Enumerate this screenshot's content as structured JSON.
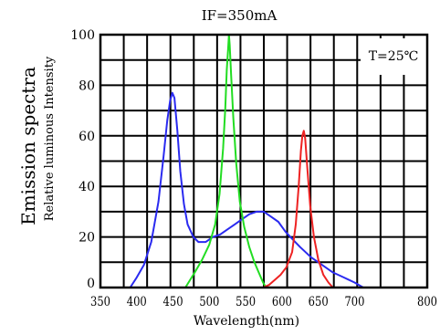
{
  "chart_data": {
    "type": "line",
    "title": "IF=350mA",
    "ylabel_primary": "Emission spectra",
    "ylabel_secondary": "Relative luminous Intensity",
    "xlabel": "Wavelength(nm)",
    "annotation": "T=25℃",
    "xlim": [
      350,
      800
    ],
    "ylim": [
      0,
      100
    ],
    "x_ticks": [
      {
        "value": 350,
        "label": "350"
      },
      {
        "value": 400,
        "label": "400"
      },
      {
        "value": 450,
        "label": "450"
      },
      {
        "value": 500,
        "label": "500"
      },
      {
        "value": 550,
        "label": "550"
      },
      {
        "value": 600,
        "label": "600"
      },
      {
        "value": 650,
        "label": "650"
      },
      {
        "value": 700,
        "label": "700"
      },
      {
        "value": 800,
        "label": "800"
      }
    ],
    "y_ticks": [
      {
        "value": 0,
        "label": "0"
      },
      {
        "value": 20,
        "label": "20"
      },
      {
        "value": 40,
        "label": "40"
      },
      {
        "value": 60,
        "label": "60"
      },
      {
        "value": 80,
        "label": "80"
      },
      {
        "value": 100,
        "label": "100"
      }
    ],
    "grid": true,
    "series": [
      {
        "color": "#2a2af0",
        "points": [
          [
            391,
            0
          ],
          [
            400,
            4
          ],
          [
            410,
            9
          ],
          [
            420,
            18
          ],
          [
            430,
            34
          ],
          [
            437,
            52
          ],
          [
            442,
            66
          ],
          [
            446,
            74
          ],
          [
            449,
            77
          ],
          [
            452,
            75
          ],
          [
            456,
            62
          ],
          [
            460,
            46
          ],
          [
            465,
            33
          ],
          [
            470,
            25
          ],
          [
            478,
            20
          ],
          [
            485,
            18
          ],
          [
            495,
            18
          ],
          [
            505,
            20
          ],
          [
            515,
            21
          ],
          [
            525,
            23
          ],
          [
            535,
            25
          ],
          [
            545,
            27
          ],
          [
            555,
            29
          ],
          [
            565,
            30
          ],
          [
            575,
            30
          ],
          [
            585,
            28
          ],
          [
            595,
            26
          ],
          [
            605,
            22
          ],
          [
            615,
            19
          ],
          [
            625,
            16
          ],
          [
            640,
            12
          ],
          [
            655,
            9
          ],
          [
            670,
            6
          ],
          [
            685,
            4
          ],
          [
            700,
            2
          ],
          [
            712,
            0
          ]
        ]
      },
      {
        "color": "#22dd22",
        "points": [
          [
            467,
            0
          ],
          [
            480,
            6
          ],
          [
            490,
            11
          ],
          [
            500,
            17
          ],
          [
            508,
            25
          ],
          [
            514,
            37
          ],
          [
            519,
            55
          ],
          [
            522,
            71
          ],
          [
            524,
            86
          ],
          [
            526,
            95
          ],
          [
            527,
            100
          ],
          [
            528,
            96
          ],
          [
            530,
            84
          ],
          [
            533,
            67
          ],
          [
            537,
            49
          ],
          [
            542,
            34
          ],
          [
            548,
            24
          ],
          [
            555,
            16
          ],
          [
            562,
            10
          ],
          [
            568,
            6
          ],
          [
            574,
            2
          ],
          [
            578,
            0
          ]
        ]
      },
      {
        "color": "#ee2222",
        "points": [
          [
            574,
            0
          ],
          [
            582,
            1
          ],
          [
            590,
            3
          ],
          [
            598,
            5
          ],
          [
            606,
            8
          ],
          [
            614,
            14
          ],
          [
            619,
            25
          ],
          [
            623,
            40
          ],
          [
            626,
            54
          ],
          [
            628,
            60
          ],
          [
            630,
            62
          ],
          [
            632,
            59
          ],
          [
            635,
            47
          ],
          [
            639,
            32
          ],
          [
            644,
            20
          ],
          [
            650,
            11
          ],
          [
            657,
            5
          ],
          [
            664,
            2
          ],
          [
            670,
            0
          ]
        ]
      }
    ]
  }
}
